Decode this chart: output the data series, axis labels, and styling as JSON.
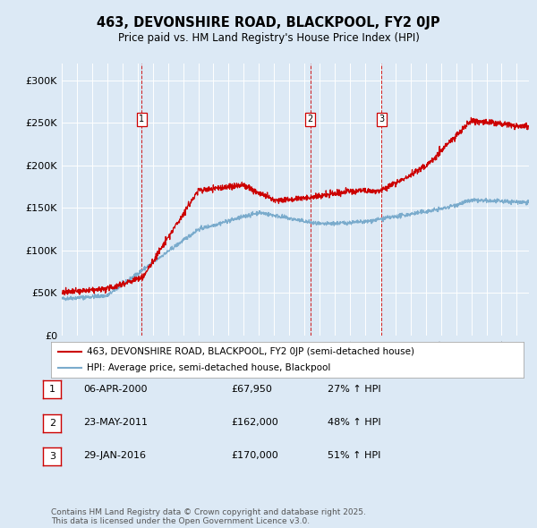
{
  "title": "463, DEVONSHIRE ROAD, BLACKPOOL, FY2 0JP",
  "subtitle": "Price paid vs. HM Land Registry's House Price Index (HPI)",
  "background_color": "#dce9f5",
  "ylim": [
    0,
    320000
  ],
  "yticks": [
    0,
    50000,
    100000,
    150000,
    200000,
    250000,
    300000
  ],
  "ytick_labels": [
    "£0",
    "£50K",
    "£100K",
    "£150K",
    "£200K",
    "£250K",
    "£300K"
  ],
  "xlim_start": 1995.0,
  "xlim_end": 2025.8,
  "red_line_color": "#cc0000",
  "blue_line_color": "#7aabcc",
  "transaction_markers": [
    {
      "x": 2000.27,
      "label": "1"
    },
    {
      "x": 2011.39,
      "label": "2"
    },
    {
      "x": 2016.08,
      "label": "3"
    }
  ],
  "legend_entries": [
    "463, DEVONSHIRE ROAD, BLACKPOOL, FY2 0JP (semi-detached house)",
    "HPI: Average price, semi-detached house, Blackpool"
  ],
  "table_rows": [
    {
      "num": "1",
      "date": "06-APR-2000",
      "price": "£67,950",
      "change": "27% ↑ HPI"
    },
    {
      "num": "2",
      "date": "23-MAY-2011",
      "price": "£162,000",
      "change": "48% ↑ HPI"
    },
    {
      "num": "3",
      "date": "29-JAN-2016",
      "price": "£170,000",
      "change": "51% ↑ HPI"
    }
  ],
  "footer": "Contains HM Land Registry data © Crown copyright and database right 2025.\nThis data is licensed under the Open Government Licence v3.0."
}
